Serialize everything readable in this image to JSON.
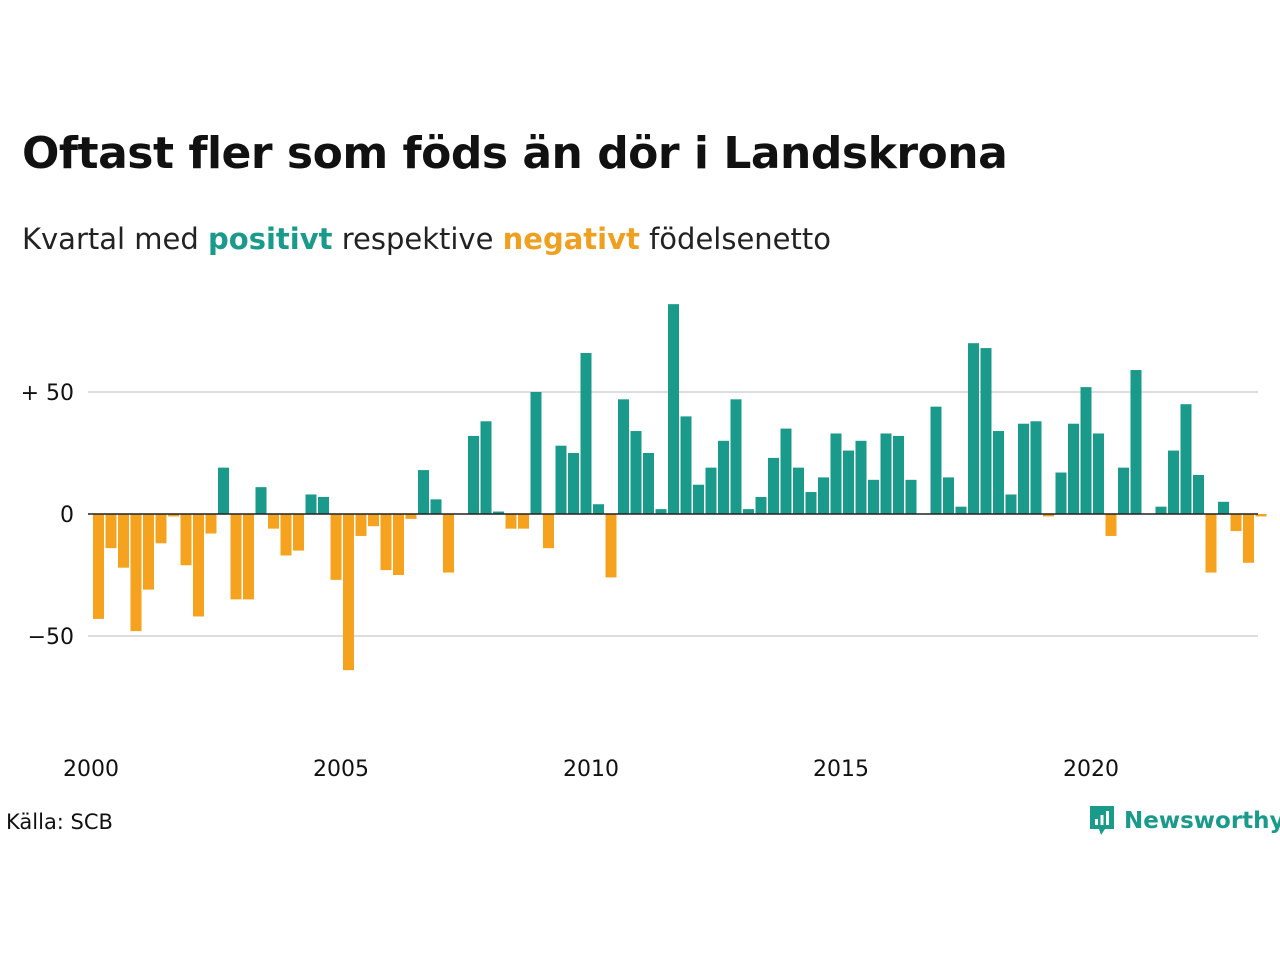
{
  "title": "Oftast fler som föds än dör i Landskrona",
  "subtitle": {
    "prefix": "Kvartal med ",
    "positive": "positivt",
    "middle": " respektive ",
    "negative": "negativt",
    "suffix": " födelsenetto"
  },
  "source": "Källa: SCB",
  "brand": {
    "name": "Newsworthy",
    "icon": "newsworthy-chart-icon"
  },
  "colors": {
    "positive": "#1a9a8a",
    "negative": "#f5a31f",
    "grid": "#dddddd",
    "baseline": "#222222"
  },
  "chart_data": {
    "type": "bar",
    "title": "Oftast fler som föds än dör i Landskrona",
    "ylim": [
      -75,
      88
    ],
    "y_ticks": [
      {
        "value": 50,
        "label": "+ 50"
      },
      {
        "value": 0,
        "label": "0"
      },
      {
        "value": -50,
        "label": "−50"
      }
    ],
    "x_ticks": [
      {
        "year": 2000,
        "label": "2000"
      },
      {
        "year": 2005,
        "label": "2005"
      },
      {
        "year": 2010,
        "label": "2010"
      },
      {
        "year": 2015,
        "label": "2015"
      },
      {
        "year": 2020,
        "label": "2020"
      }
    ],
    "grid": true,
    "series": [
      {
        "start": "2000 Q1",
        "values": [
          -43,
          -14,
          -22,
          -48,
          -31,
          -12,
          -1,
          -21,
          -42,
          -8,
          19,
          -35,
          -35,
          11,
          -6,
          -17,
          -15,
          8,
          7,
          -27,
          -64,
          -9,
          -5,
          -23,
          -25,
          -2,
          18,
          6,
          -24,
          0,
          32,
          38,
          1,
          -6,
          -6,
          50,
          -14,
          28,
          25,
          66,
          4,
          -26,
          47,
          34,
          25,
          2,
          86,
          40,
          12,
          19,
          30,
          47,
          2,
          7,
          23,
          35,
          19,
          9,
          15,
          33,
          26,
          30,
          14,
          33,
          32,
          14,
          0,
          44,
          15,
          3,
          70,
          68,
          34,
          8,
          37,
          38,
          -1,
          17,
          37,
          52,
          33,
          -9,
          19,
          59,
          0,
          3,
          26,
          45,
          16,
          -24,
          5,
          -7,
          -20,
          -1
        ]
      }
    ]
  }
}
